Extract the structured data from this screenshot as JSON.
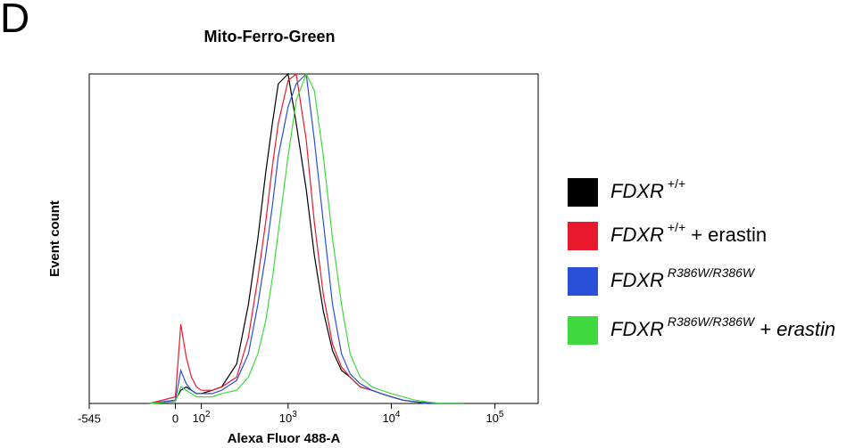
{
  "panel_label": "D",
  "chart_data": {
    "type": "line",
    "title": "Mito-Ferro-Green",
    "x_label": "Alexa Fluor 488-A",
    "y_label": "Event count",
    "x_scale": "biexponential",
    "xlim": [
      -545,
      262144
    ],
    "ylim": [
      0,
      100
    ],
    "xticks": [
      -545,
      0,
      {
        "value": 100,
        "label": "10",
        "superscript": "2"
      },
      {
        "value": 1000,
        "label": "10",
        "superscript": "3"
      },
      {
        "value": 10000,
        "label": "10",
        "superscript": "4"
      },
      {
        "value": 100000,
        "label": "10",
        "superscript": "5"
      }
    ],
    "x": [
      -100,
      0,
      20,
      40,
      60,
      80,
      100,
      150,
      200,
      300,
      400,
      500,
      600,
      700,
      800,
      1000,
      1200,
      1500,
      1800,
      2200,
      2700,
      3300,
      4000,
      5000,
      6500,
      8000,
      10000,
      13000,
      17000,
      22000,
      30000,
      50000
    ],
    "series": [
      {
        "name": "FDXR",
        "superscript": "+/+",
        "color": "#000000",
        "values": [
          0,
          1,
          4,
          5,
          4,
          3,
          3,
          4,
          5,
          12,
          30,
          50,
          70,
          85,
          97,
          100,
          85,
          65,
          45,
          28,
          16,
          10,
          8,
          5,
          4,
          3,
          2,
          1,
          0.5,
          0.2,
          0,
          0
        ]
      },
      {
        "name": "FDXR",
        "superscript": "+/+",
        "suffix": "+ erastin",
        "color": "#e8192c",
        "values": [
          0,
          2,
          24,
          14,
          8,
          5,
          4,
          4,
          5,
          8,
          20,
          38,
          55,
          72,
          85,
          98,
          100,
          80,
          55,
          33,
          18,
          11,
          8,
          5,
          4,
          3,
          2,
          1,
          0.5,
          0,
          0,
          0
        ]
      },
      {
        "name": "FDXR",
        "superscript": "R386W/R386W",
        "color": "#2a4fd8",
        "values": [
          0,
          1,
          10,
          6,
          4,
          3,
          3,
          3,
          4,
          7,
          15,
          30,
          45,
          60,
          75,
          90,
          97,
          100,
          80,
          55,
          30,
          15,
          9,
          6,
          4,
          3,
          2,
          1,
          0.5,
          0,
          0,
          0
        ]
      },
      {
        "name": "FDXR",
        "superscript": "R386W/R386W",
        "suffix": "+ erastin",
        "color": "#3fd83f",
        "values": [
          0,
          0.5,
          5,
          4,
          3,
          2,
          2,
          2,
          3,
          4,
          8,
          15,
          25,
          38,
          52,
          75,
          92,
          100,
          95,
          75,
          50,
          30,
          15,
          8,
          5,
          4,
          3,
          2,
          1,
          0.5,
          0,
          0
        ]
      }
    ]
  }
}
